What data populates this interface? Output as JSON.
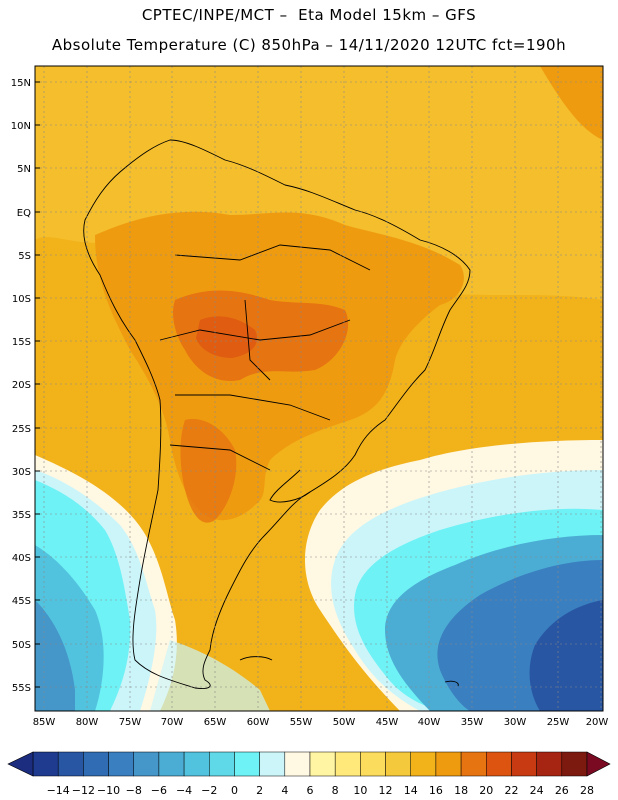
{
  "header": {
    "line1": "CPTEC/INPE/MCT –  Eta Model 15km – GFS",
    "line2": "Absolute Temperature (C) 850hPa – 14/11/2020 12UTC fct=190h"
  },
  "map": {
    "region": "South America",
    "variable": "Absolute Temperature",
    "units": "C",
    "level": "850hPa",
    "lat_ticks": [
      "15N",
      "10N",
      "5N",
      "EQ",
      "5S",
      "10S",
      "15S",
      "20S",
      "25S",
      "30S",
      "35S",
      "40S",
      "45S",
      "50S",
      "55S"
    ],
    "lon_ticks": [
      "85W",
      "80W",
      "75W",
      "70W",
      "65W",
      "60W",
      "55W",
      "50W",
      "45W",
      "40W",
      "35W",
      "30W",
      "25W",
      "20W"
    ]
  },
  "colorbar": {
    "labels": [
      "-14",
      "-12",
      "-10",
      "-8",
      "-6",
      "-4",
      "-2",
      "0",
      "2",
      "4",
      "6",
      "8",
      "10",
      "12",
      "14",
      "16",
      "18",
      "20",
      "22",
      "24",
      "26",
      "28"
    ],
    "colors": [
      "#1f3b8f",
      "#2856a3",
      "#2f6cb3",
      "#3a7fc0",
      "#4596c9",
      "#4cadd4",
      "#52c3df",
      "#5fd8e8",
      "#6ff2f5",
      "#ccf5fa",
      "#fff8e3",
      "#fff5a3",
      "#ffe97a",
      "#fcdc5c",
      "#f5c93c",
      "#f2b21a",
      "#ef9b10",
      "#e67410",
      "#dc5410",
      "#c83a12",
      "#a52412",
      "#7d1a10"
    ],
    "low_arrow_color": "#1c2d80",
    "high_arrow_color": "#7a0a22"
  }
}
